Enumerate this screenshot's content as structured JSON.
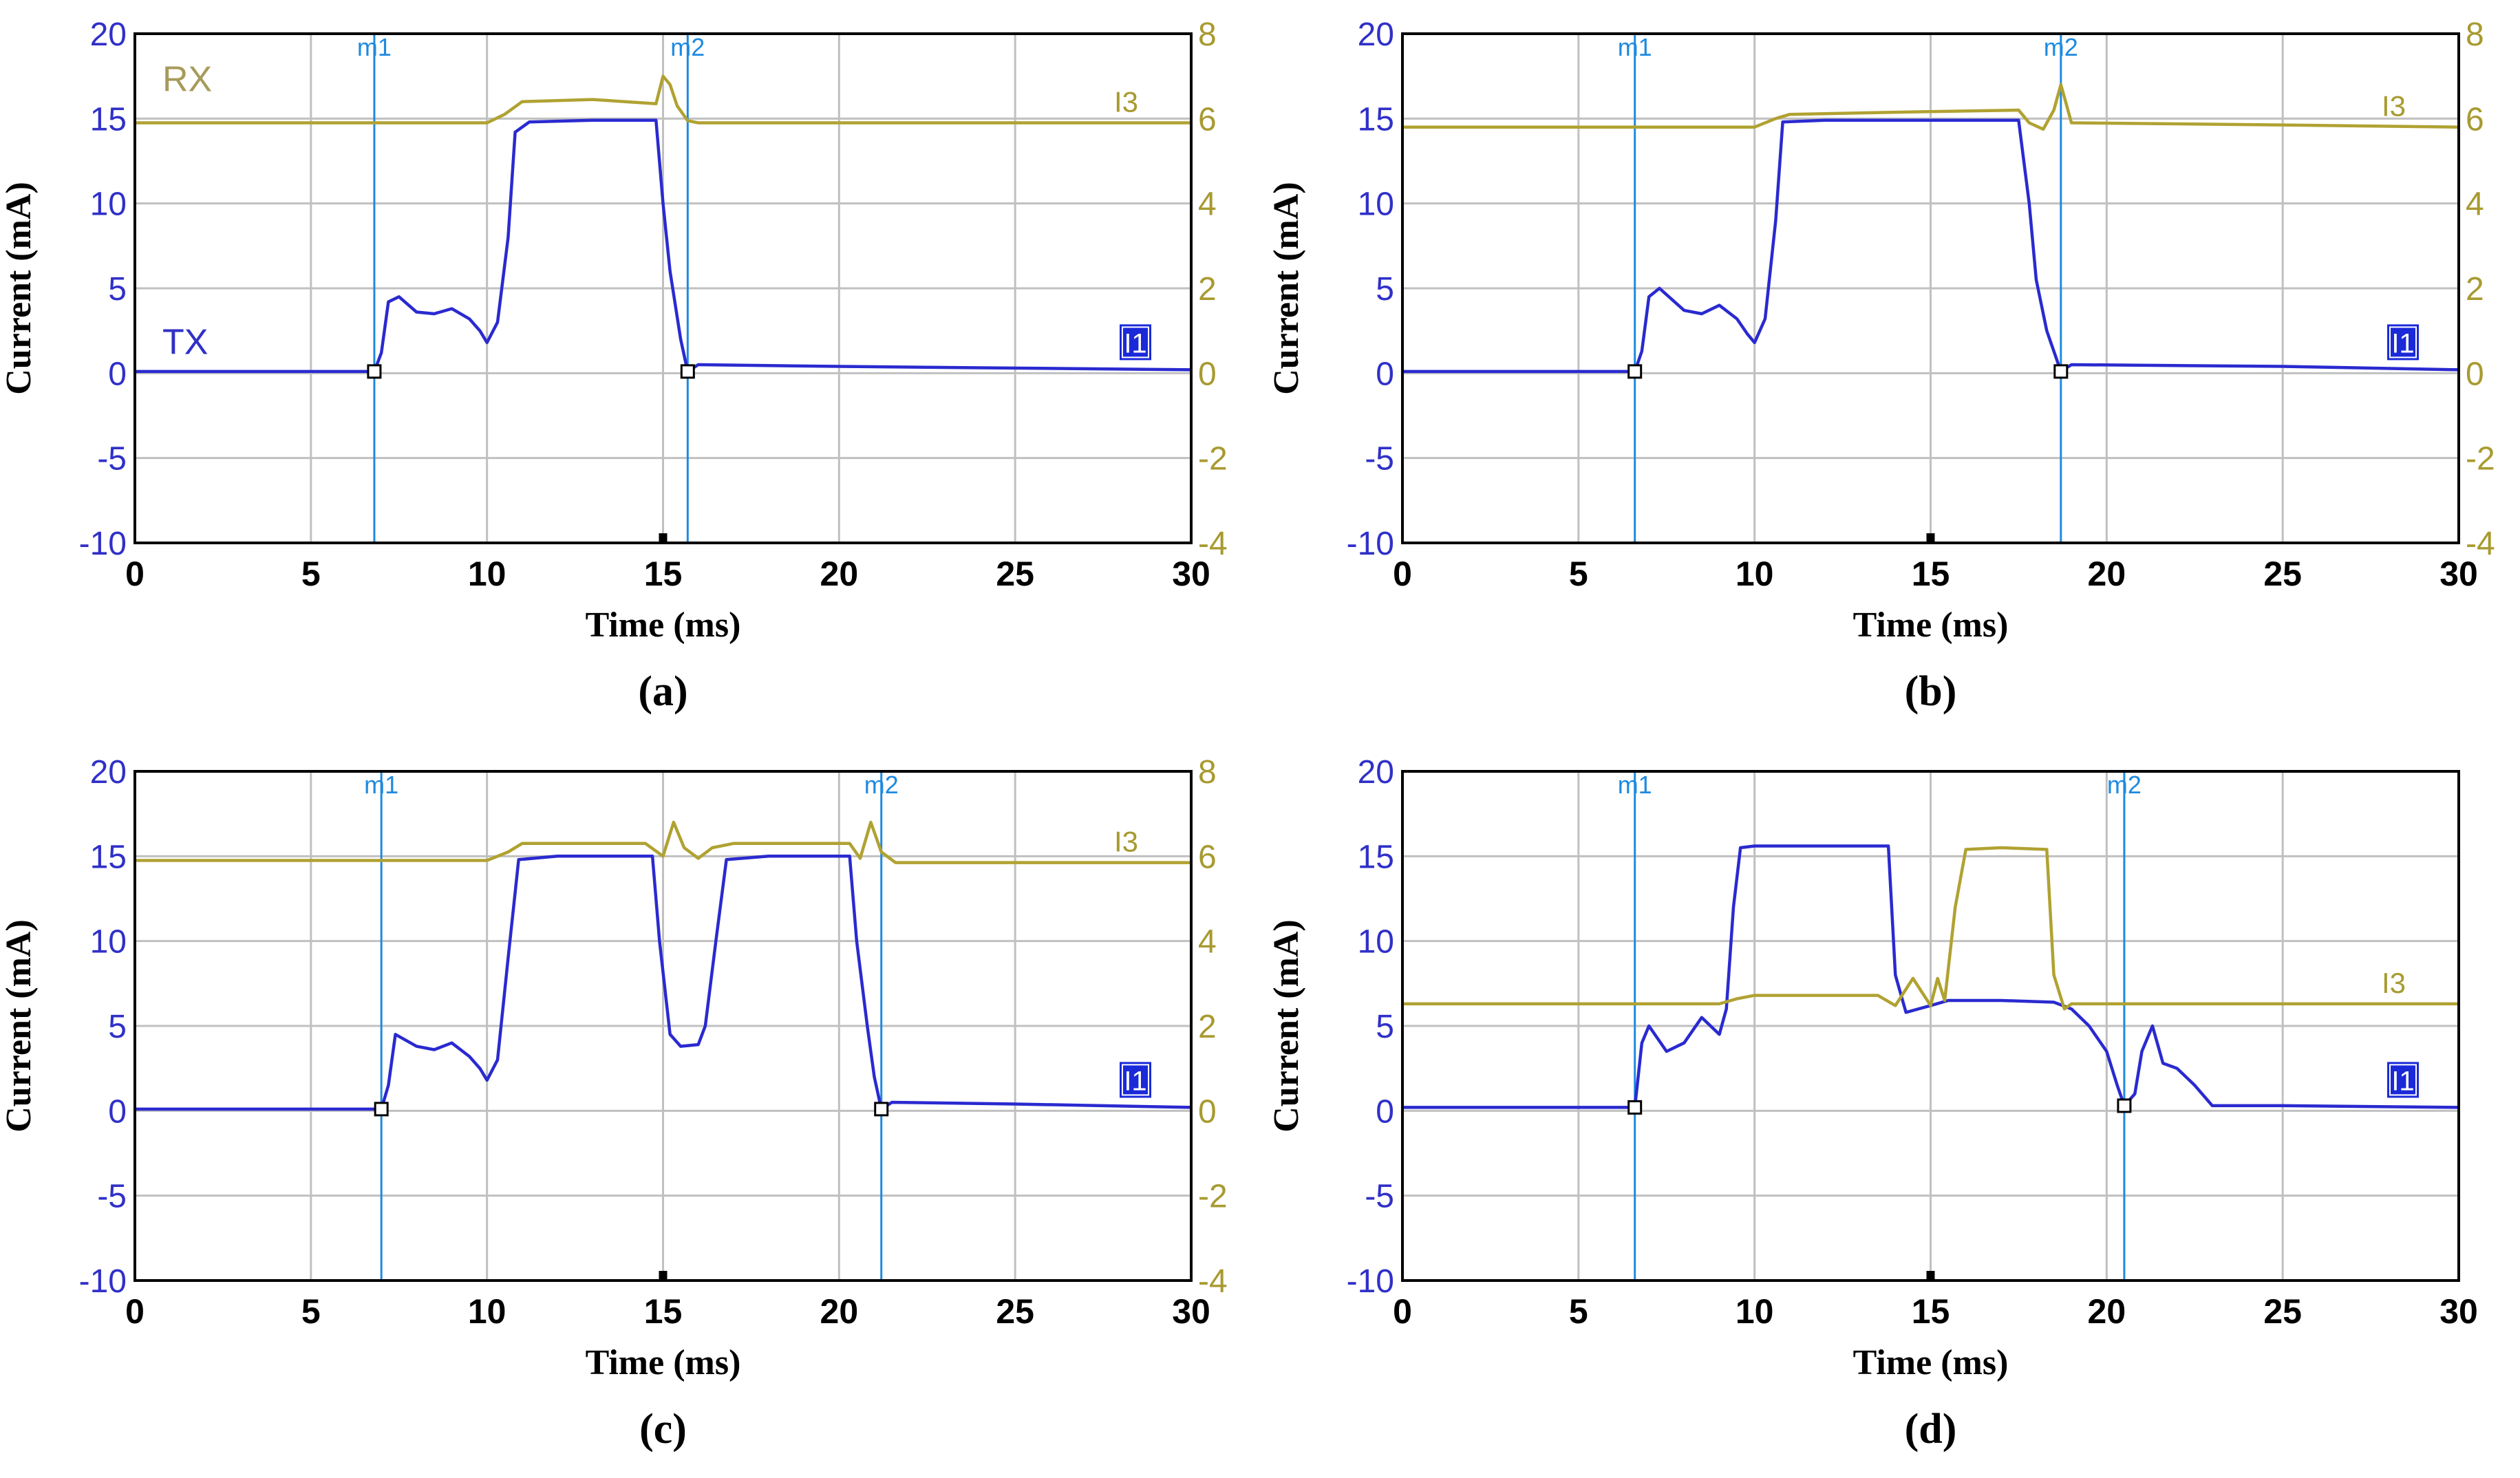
{
  "colors": {
    "tx": "#2a2ad0",
    "rx": "#b0a232",
    "marker": "#1e8ae0",
    "grid": "#c0c0c0",
    "left_axis_text": "#3030c8",
    "right_axis_text": "#a89a30"
  },
  "chart_data": [
    {
      "type": "line",
      "panel_label": "(a)",
      "xlabel": "Time (ms)",
      "ylabel": "Current (mA)",
      "xlim": [
        0,
        30
      ],
      "ylim": [
        -10,
        20
      ],
      "y2lim": [
        -4,
        8
      ],
      "x_ticks": [
        "0",
        "5",
        "10",
        "15",
        "20",
        "25",
        "30"
      ],
      "y_ticks": [
        "20",
        "15",
        "10",
        "5",
        "0",
        "-5",
        "-10"
      ],
      "y2_ticks": [
        "8",
        "6",
        "4",
        "2",
        "0",
        "-2",
        "-4"
      ],
      "markers": [
        {
          "name": "m1",
          "x": 6.8
        },
        {
          "name": "m2",
          "x": 15.7
        }
      ],
      "rx_label": "RX",
      "tx_label": "TX",
      "i3_tag": "I3",
      "i1_tag": "I1",
      "series": [
        {
          "name": "TX",
          "axis": "left",
          "x": [
            0,
            6.8,
            7.0,
            7.2,
            7.5,
            8.0,
            8.5,
            9.0,
            9.5,
            9.8,
            10.0,
            10.3,
            10.6,
            10.8,
            11.2,
            13.0,
            14.8,
            15.0,
            15.2,
            15.5,
            15.7,
            16.0,
            20.0,
            30.0
          ],
          "y": [
            0.1,
            0.1,
            1.2,
            4.2,
            4.5,
            3.6,
            3.5,
            3.8,
            3.2,
            2.5,
            1.8,
            3.0,
            8.0,
            14.2,
            14.8,
            14.9,
            14.9,
            10.0,
            6.0,
            2.0,
            0.1,
            0.5,
            0.4,
            0.2
          ]
        },
        {
          "name": "RX",
          "axis": "right",
          "x": [
            0,
            10.0,
            10.5,
            11.0,
            13.0,
            14.8,
            15.0,
            15.2,
            15.4,
            15.7,
            16.0,
            20.0,
            30.0
          ],
          "y": [
            5.9,
            5.9,
            6.1,
            6.4,
            6.45,
            6.35,
            7.0,
            6.8,
            6.3,
            5.95,
            5.9,
            5.9,
            5.9
          ]
        }
      ]
    },
    {
      "type": "line",
      "panel_label": "(b)",
      "xlabel": "Time (ms)",
      "ylabel": "Current (mA)",
      "xlim": [
        0,
        30
      ],
      "ylim": [
        -10,
        20
      ],
      "y2lim": [
        -4,
        8
      ],
      "x_ticks": [
        "0",
        "5",
        "10",
        "15",
        "20",
        "25",
        "30"
      ],
      "y_ticks": [
        "20",
        "15",
        "10",
        "5",
        "0",
        "-5",
        "-10"
      ],
      "y2_ticks": [
        "8",
        "6",
        "4",
        "2",
        "0",
        "-2",
        "-4"
      ],
      "markers": [
        {
          "name": "m1",
          "x": 6.6
        },
        {
          "name": "m2",
          "x": 18.7
        }
      ],
      "i3_tag": "I3",
      "i1_tag": "I1",
      "series": [
        {
          "name": "TX",
          "axis": "left",
          "x": [
            0,
            6.6,
            6.8,
            7.0,
            7.3,
            8.0,
            8.5,
            9.0,
            9.5,
            9.8,
            10.0,
            10.3,
            10.6,
            10.8,
            12.0,
            17.5,
            17.8,
            18.0,
            18.3,
            18.7,
            19.0,
            25.0,
            30.0
          ],
          "y": [
            0.1,
            0.1,
            1.3,
            4.5,
            5.0,
            3.7,
            3.5,
            4.0,
            3.2,
            2.3,
            1.8,
            3.2,
            9.0,
            14.8,
            14.9,
            14.9,
            10.0,
            5.5,
            2.5,
            0.1,
            0.5,
            0.4,
            0.2
          ]
        },
        {
          "name": "RX",
          "axis": "right",
          "x": [
            0,
            10.0,
            10.6,
            11.0,
            14.0,
            17.5,
            17.8,
            18.2,
            18.5,
            18.7,
            19.0,
            25.0,
            30.0
          ],
          "y": [
            5.8,
            5.8,
            6.0,
            6.1,
            6.15,
            6.2,
            5.9,
            5.75,
            6.2,
            6.8,
            5.9,
            5.85,
            5.8
          ]
        }
      ]
    },
    {
      "type": "line",
      "panel_label": "(c)",
      "xlabel": "Time (ms)",
      "ylabel": "Current (mA)",
      "xlim": [
        0,
        30
      ],
      "ylim": [
        -10,
        20
      ],
      "y2lim": [
        -4,
        8
      ],
      "x_ticks": [
        "0",
        "5",
        "10",
        "15",
        "20",
        "25",
        "30"
      ],
      "y_ticks": [
        "20",
        "15",
        "10",
        "5",
        "0",
        "-5",
        "-10"
      ],
      "y2_ticks": [
        "8",
        "6",
        "4",
        "2",
        "0",
        "-2",
        "-4"
      ],
      "markers": [
        {
          "name": "m1",
          "x": 7.0
        },
        {
          "name": "m2",
          "x": 21.2
        }
      ],
      "i3_tag": "I3",
      "i1_tag": "I1",
      "series": [
        {
          "name": "TX",
          "axis": "left",
          "x": [
            0,
            7.0,
            7.2,
            7.4,
            8.0,
            8.5,
            9.0,
            9.5,
            9.8,
            10.0,
            10.3,
            10.6,
            10.9,
            12.0,
            14.7,
            14.9,
            15.2,
            15.5,
            16.0,
            16.2,
            16.5,
            16.8,
            18.0,
            20.3,
            20.5,
            20.8,
            21.0,
            21.2,
            21.5,
            25.0,
            30.0
          ],
          "y": [
            0.1,
            0.1,
            1.5,
            4.5,
            3.8,
            3.6,
            4.0,
            3.2,
            2.5,
            1.8,
            3.0,
            9.0,
            14.8,
            15.0,
            15.0,
            10.0,
            4.5,
            3.8,
            3.9,
            5.0,
            10.0,
            14.8,
            15.0,
            15.0,
            10.0,
            5.0,
            2.0,
            0.1,
            0.5,
            0.4,
            0.2
          ]
        },
        {
          "name": "RX",
          "axis": "right",
          "x": [
            0,
            10.0,
            10.6,
            11.0,
            14.5,
            15.0,
            15.3,
            15.6,
            16.0,
            16.4,
            17.0,
            20.3,
            20.6,
            20.9,
            21.2,
            21.6,
            25.0,
            30.0
          ],
          "y": [
            5.9,
            5.9,
            6.1,
            6.3,
            6.3,
            6.0,
            6.8,
            6.2,
            5.95,
            6.2,
            6.3,
            6.3,
            5.95,
            6.8,
            6.1,
            5.85,
            5.85,
            5.85
          ]
        }
      ]
    },
    {
      "type": "line",
      "panel_label": "(d)",
      "xlabel": "Time (ms)",
      "ylabel": "Current (mA)",
      "xlim": [
        0,
        30
      ],
      "ylim": [
        -10,
        20
      ],
      "x_ticks": [
        "0",
        "5",
        "10",
        "15",
        "20",
        "25",
        "30"
      ],
      "y_ticks": [
        "20",
        "15",
        "10",
        "5",
        "0",
        "-5",
        "-10"
      ],
      "y2_ticks": [],
      "markers": [
        {
          "name": "m1",
          "x": 6.6
        },
        {
          "name": "m2",
          "x": 20.5
        }
      ],
      "i3_tag": "I3",
      "i1_tag": "I1",
      "series": [
        {
          "name": "TX",
          "axis": "left",
          "x": [
            0,
            6.6,
            6.8,
            7.0,
            7.5,
            8.0,
            8.5,
            9.0,
            9.2,
            9.4,
            9.6,
            10.0,
            12.0,
            13.8,
            14.0,
            14.3,
            15.0,
            15.5,
            17.0,
            18.5,
            19.0,
            19.5,
            20.0,
            20.3,
            20.5,
            20.8,
            21.0,
            21.3,
            21.6,
            22.0,
            22.5,
            23.0,
            25.0,
            30.0
          ],
          "y": [
            0.2,
            0.2,
            4.0,
            5.0,
            3.5,
            4.0,
            5.5,
            4.5,
            6.0,
            12.0,
            15.5,
            15.6,
            15.6,
            15.6,
            8.0,
            5.8,
            6.2,
            6.5,
            6.5,
            6.4,
            6.0,
            5.0,
            3.5,
            1.5,
            0.3,
            1.0,
            3.5,
            5.0,
            2.8,
            2.5,
            1.5,
            0.3,
            0.3,
            0.2
          ]
        },
        {
          "name": "RX",
          "axis": "left",
          "x": [
            0,
            9.0,
            9.5,
            10.0,
            13.5,
            14.0,
            14.5,
            15.0,
            15.2,
            15.4,
            15.7,
            16.0,
            17.0,
            18.3,
            18.5,
            18.8,
            19.0,
            20.0,
            25.0,
            30.0
          ],
          "y": [
            6.3,
            6.3,
            6.6,
            6.8,
            6.8,
            6.2,
            7.8,
            6.2,
            7.8,
            6.5,
            12.0,
            15.4,
            15.5,
            15.4,
            8.0,
            6.0,
            6.3,
            6.3,
            6.3,
            6.3
          ]
        }
      ]
    }
  ]
}
